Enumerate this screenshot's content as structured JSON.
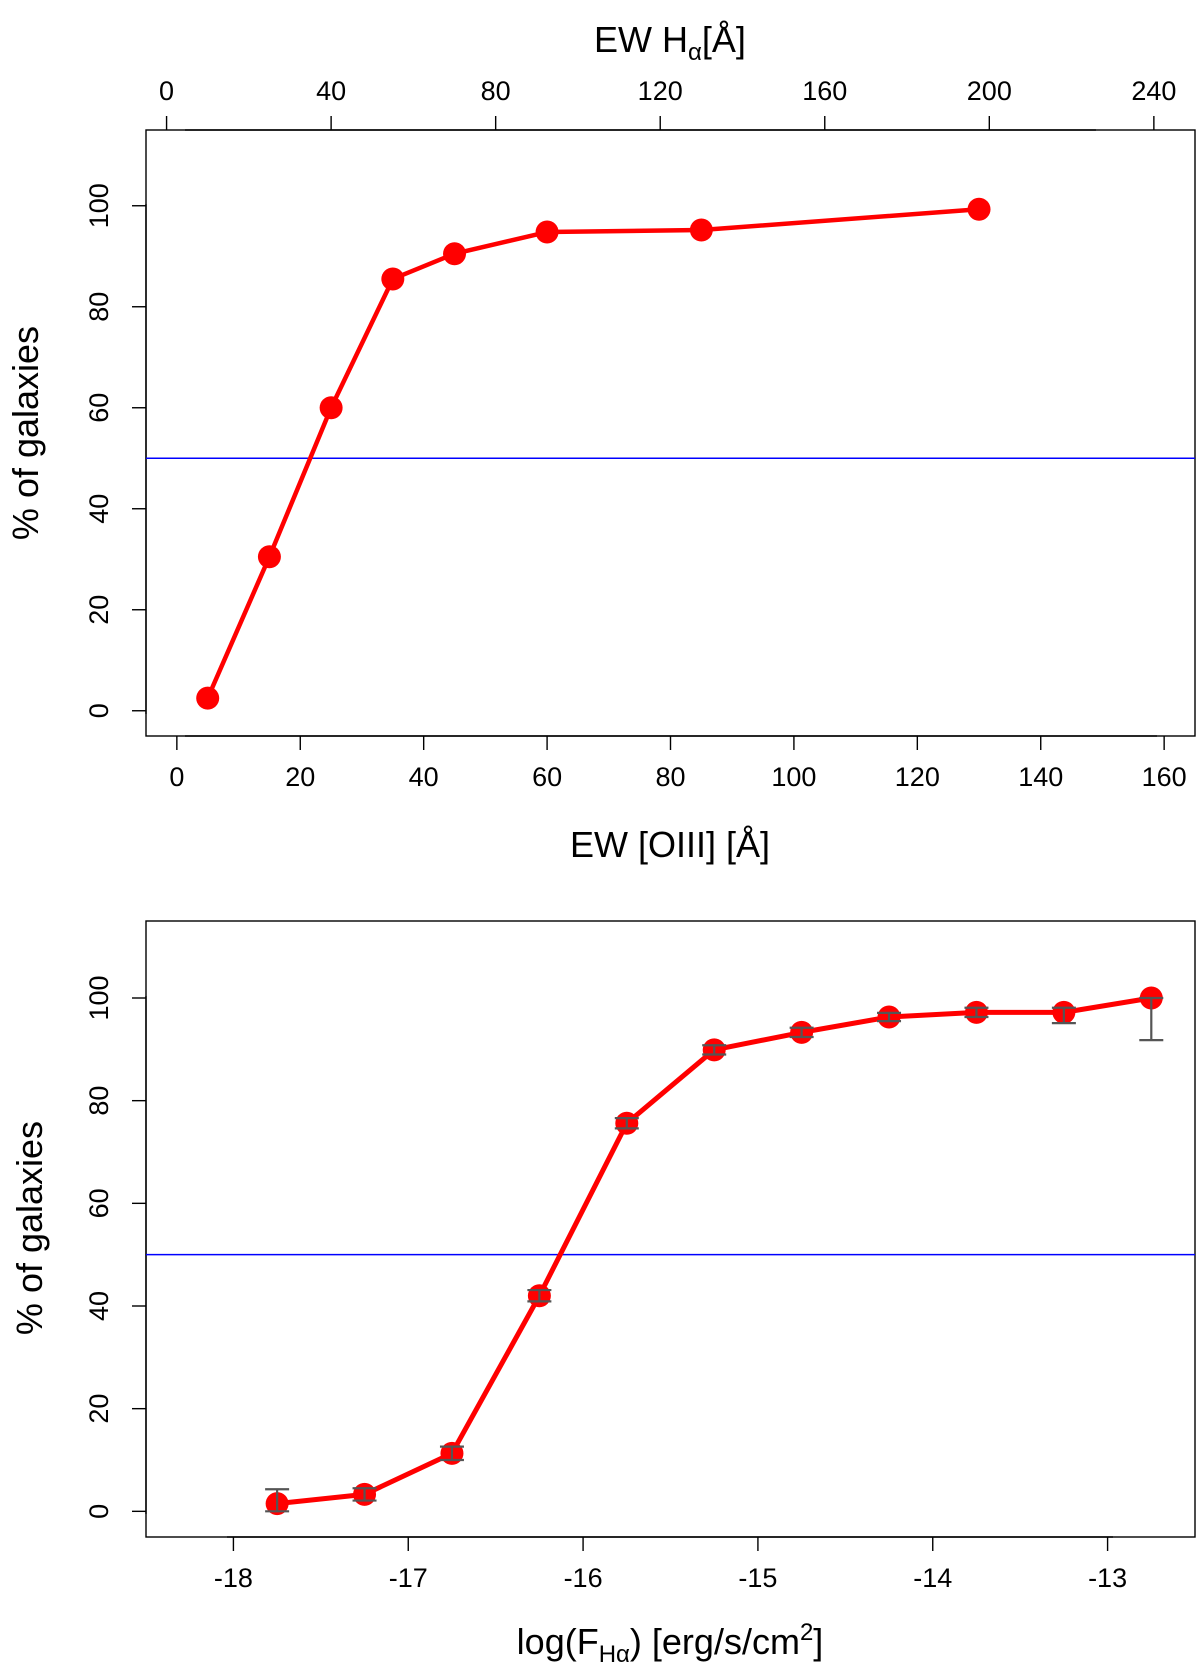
{
  "chart_data": [
    {
      "type": "line",
      "x_label": "EW [OIII] [Å]",
      "y_label": "% of galaxies",
      "top_axis_label": {
        "pre": "EW H",
        "sub": "α",
        "post": "[Å]"
      },
      "xlim": [
        -5,
        165
      ],
      "ylim": [
        -5,
        115
      ],
      "xticks": [
        0,
        20,
        40,
        60,
        80,
        100,
        120,
        140,
        160
      ],
      "yticks": [
        0,
        20,
        40,
        60,
        80,
        100
      ],
      "top_xlim": [
        -5,
        250
      ],
      "top_xticks": [
        0,
        40,
        80,
        120,
        160,
        200,
        240
      ],
      "reference_line_y": 50,
      "reference_line_color": "#0000ff",
      "series_color": "#ff0000",
      "grid": false,
      "series": [
        {
          "x": [
            5,
            15,
            25,
            35,
            45,
            60,
            85,
            130
          ],
          "y": [
            2.5,
            30.5,
            60,
            85.5,
            90.5,
            94.8,
            95.2,
            99.3
          ]
        }
      ]
    },
    {
      "type": "line",
      "x_label": {
        "pre": "log(F",
        "sub": "Hα",
        "post": ") [erg/s/cm",
        "sup": "2",
        "end": "]"
      },
      "y_label": "% of galaxies",
      "xlim": [
        -18.5,
        -12.5
      ],
      "ylim": [
        -5,
        115
      ],
      "xticks": [
        -18,
        -17,
        -16,
        -15,
        -14,
        -13
      ],
      "yticks": [
        0,
        20,
        40,
        60,
        80,
        100
      ],
      "reference_line_y": 50,
      "reference_line_color": "#0000ff",
      "series_color": "#ff0000",
      "errorbar_color": "#555555",
      "grid": false,
      "series": [
        {
          "x": [
            -17.75,
            -17.25,
            -16.75,
            -16.25,
            -15.75,
            -15.25,
            -14.75,
            -14.25,
            -13.75,
            -13.25,
            -12.75
          ],
          "y": [
            1.5,
            3.3,
            11.3,
            42,
            75.6,
            89.9,
            93.3,
            96.3,
            97.2,
            97.2,
            100
          ],
          "err_low": [
            1.5,
            1.2,
            1.3,
            1.1,
            1,
            0.9,
            0.9,
            0.8,
            0.9,
            2.1,
            8.2
          ],
          "err_high": [
            2.8,
            1.2,
            1.3,
            1.1,
            1,
            0.9,
            0.9,
            0.8,
            0.9,
            0.9,
            0
          ]
        }
      ]
    }
  ]
}
